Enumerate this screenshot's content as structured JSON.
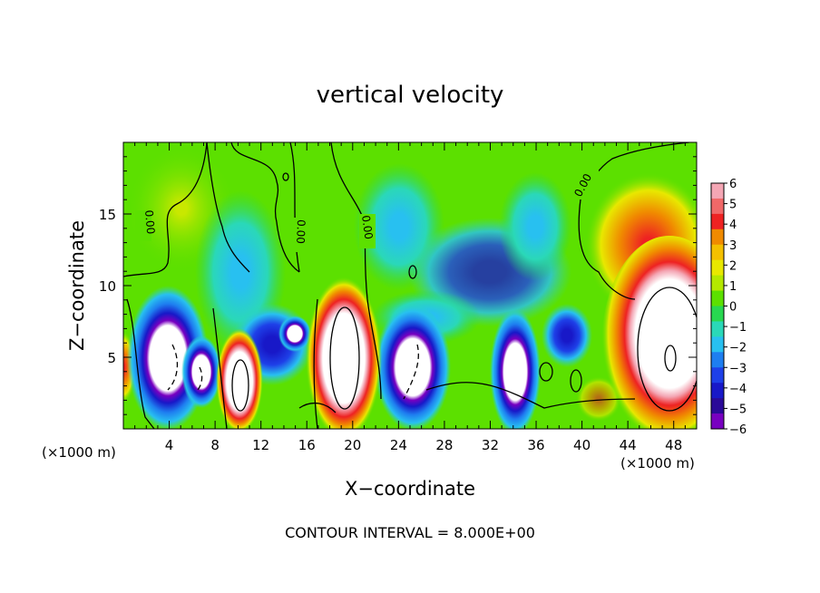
{
  "chart_data": {
    "type": "heatmap",
    "title": "vertical velocity",
    "xlabel": "X−coordinate",
    "ylabel": "Z−coordinate",
    "x_unit_left": "(×1000 m)",
    "x_unit_right": "(×1000 m)",
    "xlim": [
      0,
      50
    ],
    "ylim": [
      0,
      20
    ],
    "x_ticks": [
      4,
      8,
      12,
      16,
      20,
      24,
      28,
      32,
      36,
      40,
      44,
      48
    ],
    "y_ticks": [
      5,
      10,
      15
    ],
    "contour_labels": [
      "0.00",
      "0.00",
      "0.00",
      "0.00"
    ],
    "footer": "CONTOUR INTERVAL = 8.000E+00",
    "colorbar": {
      "ticks": [
        "6",
        "5",
        "4",
        "3",
        "2",
        "1",
        "0",
        "−1",
        "−2",
        "−3",
        "−4",
        "−5",
        "−6"
      ],
      "colors": [
        "#f4a6b4",
        "#f06868",
        "#ee2222",
        "#f08a00",
        "#f4c000",
        "#e8e800",
        "#b4e800",
        "#5ce000",
        "#28d850",
        "#2ad8b8",
        "#28c0f0",
        "#1e7ef0",
        "#1e40e8",
        "#1818c8",
        "#2a0a98",
        "#7800c0"
      ]
    },
    "cells": [
      {
        "x": 6,
        "z": 6,
        "w": -6
      },
      {
        "x": 10.5,
        "z": 3,
        "w": 6
      },
      {
        "x": 19,
        "z": 5,
        "w": 6
      },
      {
        "x": 25,
        "z": 4,
        "w": -6
      },
      {
        "x": 34,
        "z": 3,
        "w": -6
      },
      {
        "x": 38.5,
        "z": 7,
        "w": -4
      },
      {
        "x": 47,
        "z": 6,
        "w": 6
      }
    ]
  }
}
